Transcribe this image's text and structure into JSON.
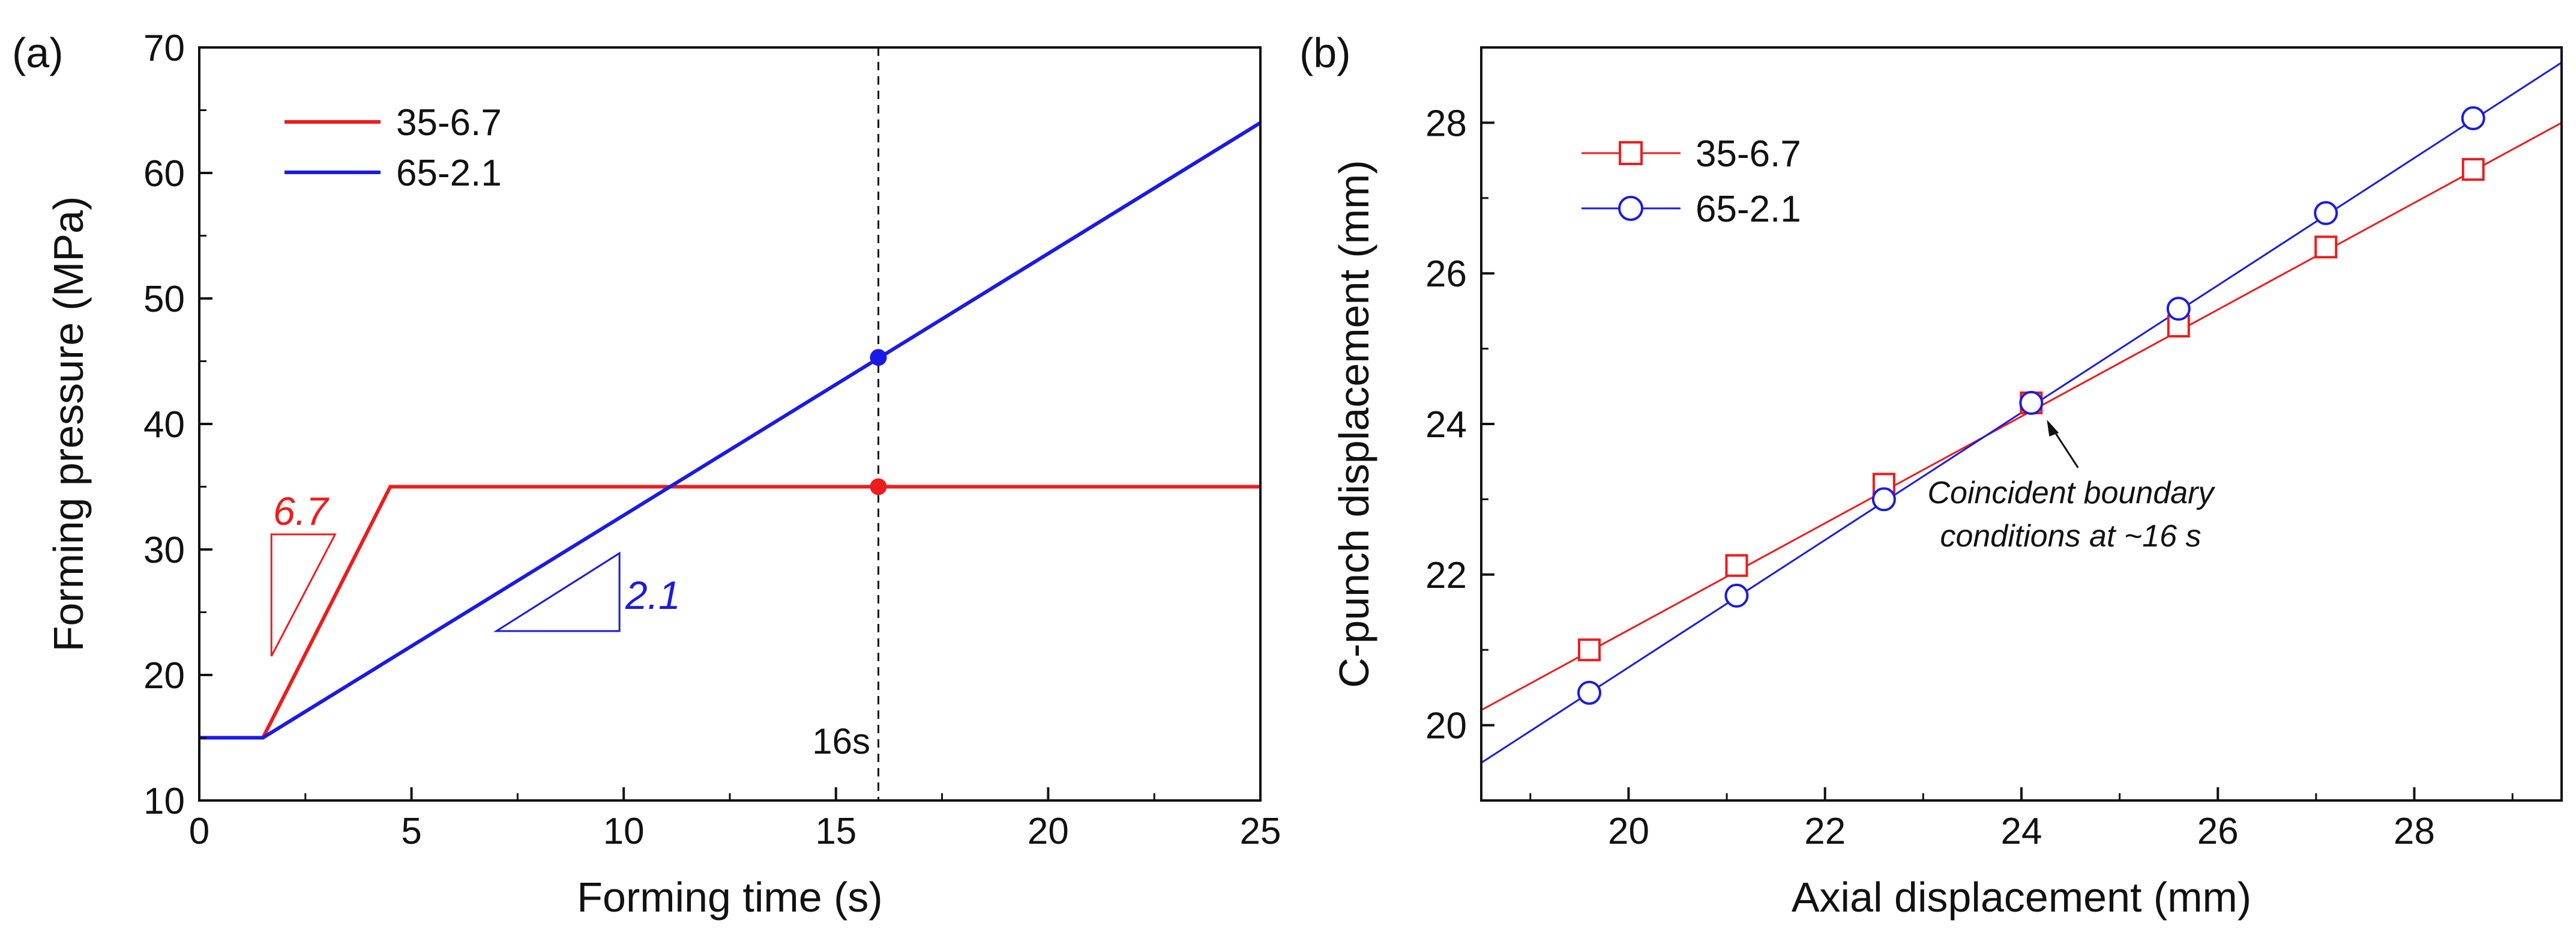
{
  "colors": {
    "red": "#ee1c1c",
    "blue": "#1a1ae6",
    "black": "#111111"
  },
  "chart_data": [
    {
      "panel": "(a)",
      "type": "line",
      "title": "",
      "xlabel": "Forming time (s)",
      "ylabel": "Forming pressure (MPa)",
      "xlim": [
        0,
        25
      ],
      "ylim": [
        10,
        70
      ],
      "xticks": [
        "0",
        "5",
        "10",
        "15",
        "20",
        "25"
      ],
      "yticks": [
        "10",
        "20",
        "30",
        "40",
        "50",
        "60",
        "70"
      ],
      "legend_position": "top-left",
      "series": [
        {
          "name": "35-6.7",
          "color": "#ee1c1c",
          "x": [
            0,
            1.5,
            4.5,
            25
          ],
          "y": [
            15,
            15,
            35,
            35
          ]
        },
        {
          "name": "65-2.1",
          "color": "#1a1ae6",
          "x": [
            0,
            1.5,
            25
          ],
          "y": [
            15,
            15,
            64
          ]
        }
      ],
      "vline": {
        "x": 16,
        "label": "16s"
      },
      "points": [
        {
          "series": "65-2.1",
          "x": 16,
          "y": 45.3,
          "color": "#1a1ae6"
        },
        {
          "series": "35-6.7",
          "x": 16,
          "y": 35,
          "color": "#ee1c1c"
        }
      ],
      "slope_annotations": [
        {
          "label": "6.7",
          "color": "#ee1c1c",
          "vertices": [
            [
              1.7,
              21.5
            ],
            [
              1.7,
              31.2
            ],
            [
              3.2,
              31.2
            ]
          ]
        },
        {
          "label": "2.1",
          "color": "#1a1ae6",
          "vertices": [
            [
              7,
              23.5
            ],
            [
              9.9,
              23.5
            ],
            [
              9.9,
              29.7
            ]
          ]
        }
      ]
    },
    {
      "panel": "(b)",
      "type": "line",
      "title": "",
      "xlabel": "Axial displacement (mm)",
      "ylabel": "C-punch displacement (mm)",
      "xlim": [
        18.5,
        29.5
      ],
      "ylim": [
        19,
        29
      ],
      "xticks": [
        "20",
        "22",
        "24",
        "26",
        "28"
      ],
      "yticks": [
        "20",
        "22",
        "24",
        "26",
        "28"
      ],
      "legend_position": "top-left",
      "series": [
        {
          "name": "35-6.7",
          "color": "#ee1c1c",
          "marker": "square",
          "x": [
            19.6,
            21.1,
            22.6,
            24.1,
            25.6,
            27.1,
            28.6
          ],
          "y": [
            21.0,
            22.12,
            23.2,
            24.28,
            25.3,
            26.35,
            27.38
          ],
          "fit": {
            "x": [
              18.5,
              29.5
            ],
            "y": [
              20.2,
              28.0
            ]
          }
        },
        {
          "name": "65-2.1",
          "color": "#1a1ae6",
          "marker": "circle",
          "x": [
            19.6,
            21.1,
            22.6,
            24.1,
            25.6,
            27.1,
            28.6
          ],
          "y": [
            20.43,
            21.72,
            23.0,
            24.28,
            25.53,
            26.8,
            28.06
          ],
          "fit": {
            "x": [
              18.5,
              29.5
            ],
            "y": [
              19.5,
              28.8
            ]
          }
        }
      ],
      "annotation": {
        "lines": [
          "Coincident boundary",
          "conditions at ~16 s"
        ],
        "arrow_to": [
          24.1,
          24.28
        ]
      }
    }
  ]
}
